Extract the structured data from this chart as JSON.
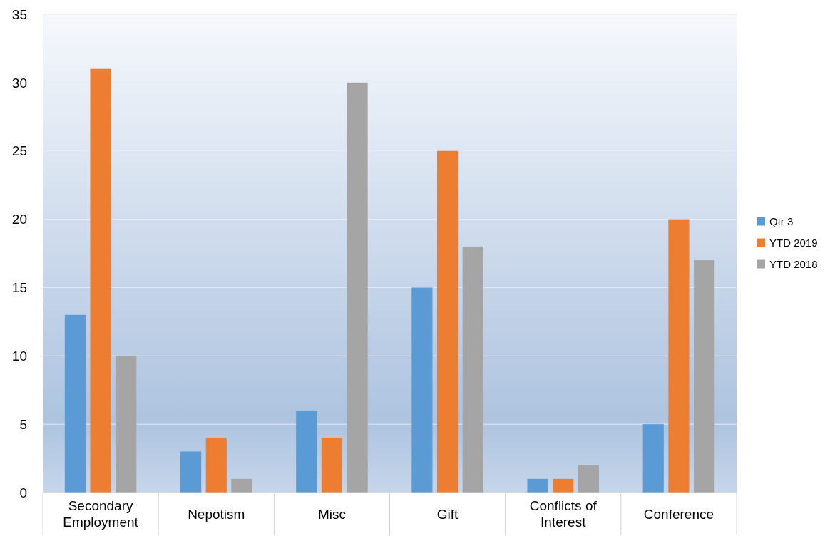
{
  "chart_data": {
    "type": "bar",
    "categories": [
      "Secondary Employment",
      "Nepotism",
      "Misc",
      "Gift",
      "Conflicts of Interest",
      "Conference"
    ],
    "series": [
      {
        "name": "Qtr 3",
        "color": "#5b9bd5",
        "values": [
          13,
          3,
          6,
          15,
          1,
          5
        ]
      },
      {
        "name": "YTD 2019",
        "color": "#ed7d31",
        "values": [
          31,
          4,
          4,
          25,
          1,
          20
        ]
      },
      {
        "name": "YTD 2018",
        "color": "#a5a5a5",
        "values": [
          10,
          1,
          30,
          18,
          2,
          17
        ]
      }
    ],
    "ylim": [
      0,
      35
    ],
    "yticks": [
      0,
      5,
      10,
      15,
      20,
      25,
      30,
      35
    ],
    "grid": "y",
    "legend": "right"
  }
}
